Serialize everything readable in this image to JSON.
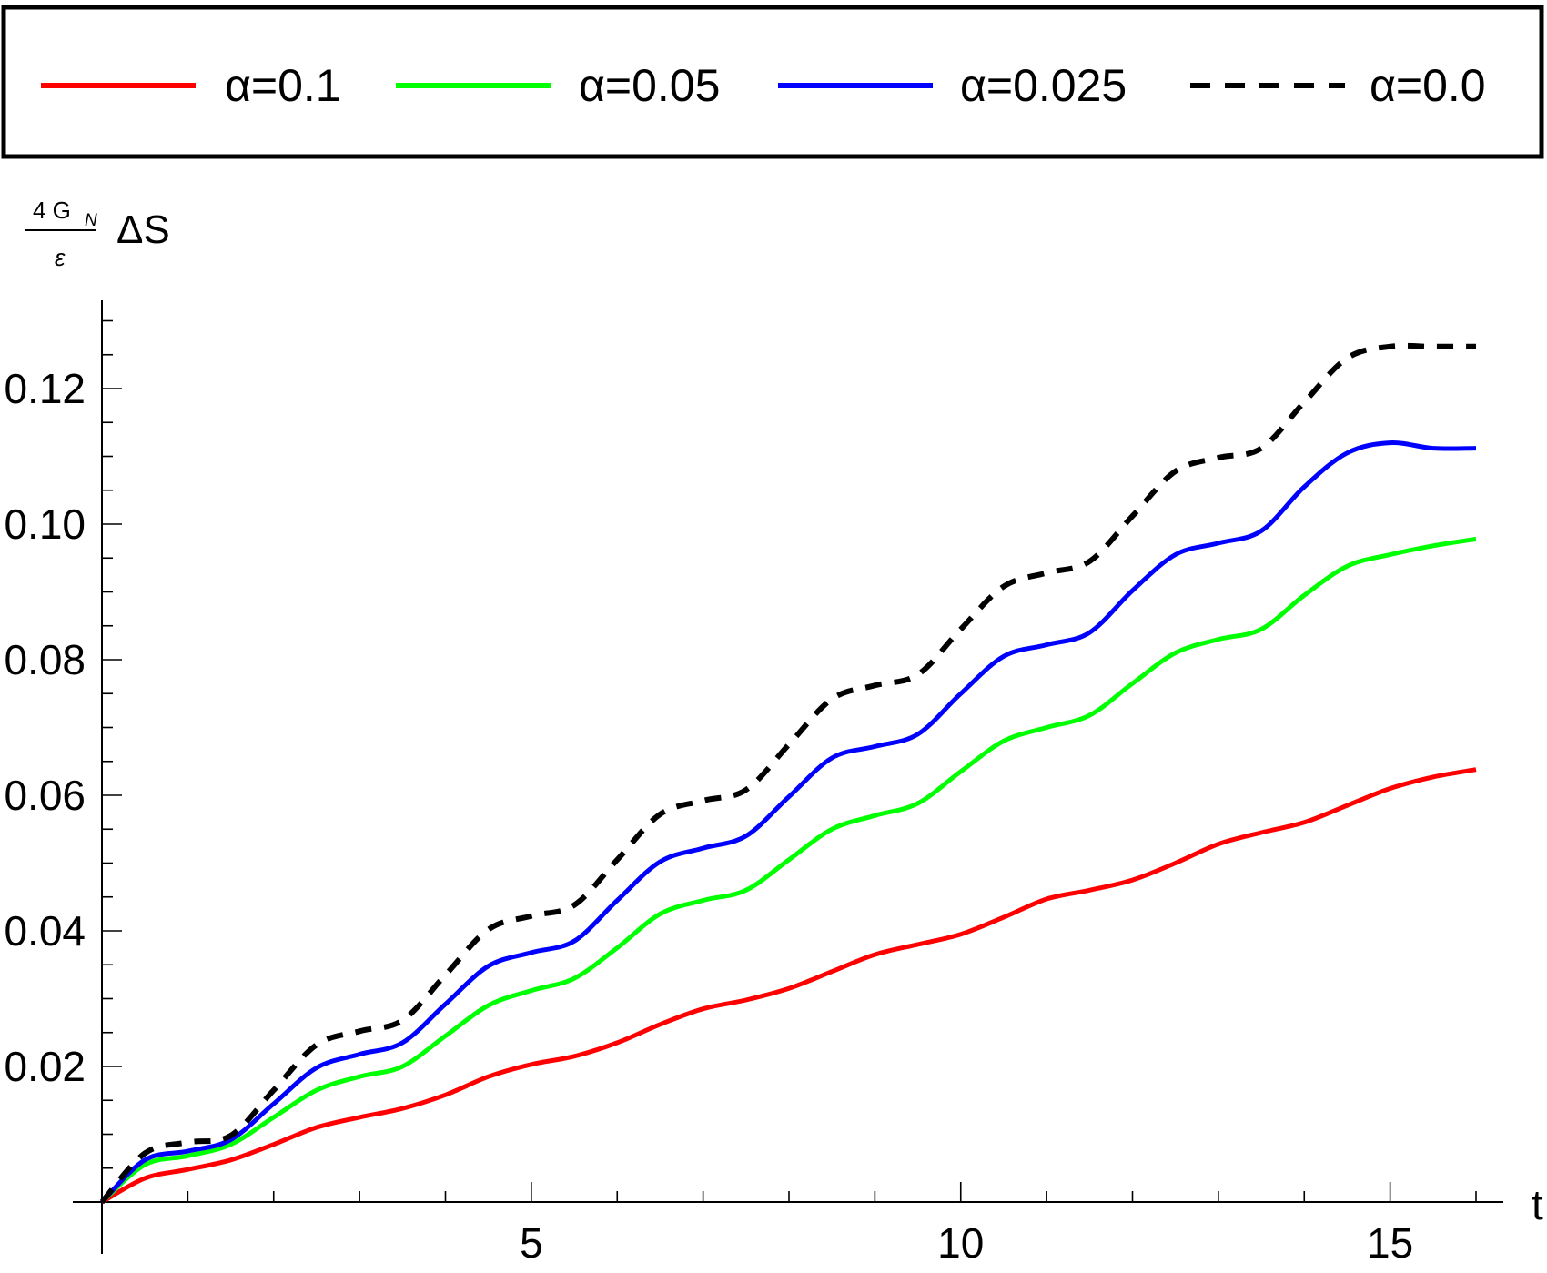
{
  "chart_data": {
    "type": "line",
    "xlabel": "t",
    "ylabel": {
      "numerator": "4 G",
      "numerator_subscript": "N",
      "denominator": "ε",
      "quantity": "ΔS"
    },
    "xlim": [
      0,
      16
    ],
    "ylim": [
      0,
      0.13
    ],
    "x_ticks": [
      5,
      10,
      15
    ],
    "y_ticks": [
      0.02,
      0.04,
      0.06,
      0.08,
      0.1,
      0.12
    ],
    "x_tick_labels": [
      "5",
      "10",
      "15"
    ],
    "y_tick_labels": [
      "0.02",
      "0.04",
      "0.06",
      "0.08",
      "0.10",
      "0.12"
    ],
    "grid": false,
    "legend_position": "top",
    "x": [
      0,
      0.5,
      1,
      1.5,
      2,
      2.5,
      3,
      3.5,
      4,
      4.5,
      5,
      5.5,
      6,
      6.5,
      7,
      7.5,
      8,
      8.5,
      9,
      9.5,
      10,
      10.5,
      11,
      11.5,
      12,
      12.5,
      13,
      13.5,
      14,
      14.5,
      15,
      15.5,
      16
    ],
    "series": [
      {
        "name": "α=0.1",
        "color": "#ff0000",
        "dash": "solid",
        "values": [
          0,
          0.0035,
          0.0048,
          0.0062,
          0.0085,
          0.011,
          0.0125,
          0.0138,
          0.0158,
          0.0185,
          0.0203,
          0.0215,
          0.0235,
          0.0262,
          0.0285,
          0.0298,
          0.0315,
          0.034,
          0.0365,
          0.038,
          0.0395,
          0.042,
          0.0447,
          0.046,
          0.0475,
          0.05,
          0.0528,
          0.0545,
          0.056,
          0.0585,
          0.061,
          0.0627,
          0.0638
        ]
      },
      {
        "name": "α=0.05",
        "color": "#00ff00",
        "dash": "solid",
        "values": [
          0,
          0.0055,
          0.0068,
          0.0085,
          0.0125,
          0.0165,
          0.0185,
          0.02,
          0.0245,
          0.029,
          0.0312,
          0.033,
          0.0375,
          0.0425,
          0.0445,
          0.046,
          0.0505,
          0.055,
          0.057,
          0.0588,
          0.0635,
          0.068,
          0.07,
          0.0718,
          0.0765,
          0.081,
          0.083,
          0.0845,
          0.0895,
          0.0938,
          0.0955,
          0.0968,
          0.0978
        ]
      },
      {
        "name": "α=0.025",
        "color": "#0000ff",
        "dash": "solid",
        "values": [
          0,
          0.0062,
          0.0075,
          0.0092,
          0.0145,
          0.0198,
          0.0218,
          0.0235,
          0.0292,
          0.0348,
          0.0368,
          0.0385,
          0.0445,
          0.0502,
          0.0522,
          0.054,
          0.0598,
          0.0655,
          0.0672,
          0.069,
          0.075,
          0.0805,
          0.0822,
          0.084,
          0.0902,
          0.0955,
          0.0972,
          0.099,
          0.1055,
          0.1105,
          0.112,
          0.1112,
          0.1112
        ]
      },
      {
        "name": "α=0.0",
        "color": "#000000",
        "dash": "dashed",
        "values": [
          0,
          0.0072,
          0.0088,
          0.0098,
          0.0165,
          0.0232,
          0.0252,
          0.0268,
          0.0335,
          0.0402,
          0.0422,
          0.0438,
          0.0505,
          0.0572,
          0.0592,
          0.0608,
          0.0675,
          0.0742,
          0.0762,
          0.0778,
          0.0845,
          0.0908,
          0.0928,
          0.0945,
          0.1012,
          0.1078,
          0.1098,
          0.1112,
          0.118,
          0.1245,
          0.1262,
          0.1262,
          0.1262
        ]
      }
    ]
  }
}
